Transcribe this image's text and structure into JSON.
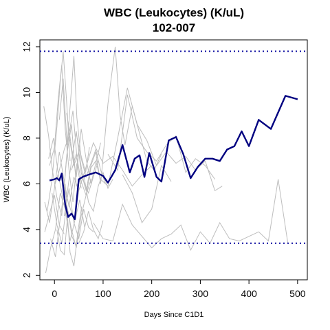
{
  "chart_data": {
    "type": "line",
    "title": "WBC (Leukocytes) (K/uL)",
    "subtitle": "102-007",
    "xlabel": "Days Since C1D1",
    "ylabel": "WBC (Leukocytes) (K/uL)",
    "xlim": [
      -30,
      520
    ],
    "ylim": [
      1.8,
      12.3
    ],
    "x_ticks": [
      0,
      100,
      200,
      300,
      400,
      500
    ],
    "y_ticks": [
      2,
      4,
      6,
      8,
      10,
      12
    ],
    "grid": false,
    "reference_lines": [
      11.8,
      3.4
    ],
    "reference_color": "#1a1aa6",
    "highlight_color": "#000080",
    "background_color": "#bdbdbd",
    "highlight": {
      "name": "102-007",
      "x": [
        -10,
        0,
        5,
        10,
        15,
        22,
        28,
        35,
        42,
        50,
        58,
        70,
        85,
        100,
        110,
        125,
        140,
        155,
        165,
        175,
        185,
        195,
        210,
        220,
        235,
        250,
        265,
        280,
        295,
        310,
        325,
        340,
        355,
        370,
        385,
        400,
        420,
        445,
        475,
        500
      ],
      "y": [
        6.15,
        6.2,
        6.25,
        6.15,
        6.45,
        5.1,
        4.55,
        4.7,
        4.45,
        6.2,
        6.3,
        6.4,
        6.5,
        6.35,
        6.05,
        6.6,
        7.7,
        6.5,
        7.1,
        7.25,
        6.3,
        7.35,
        6.3,
        6.1,
        7.9,
        8.05,
        7.3,
        6.25,
        6.75,
        7.1,
        7.1,
        7.0,
        7.5,
        7.65,
        8.3,
        7.65,
        8.8,
        8.4,
        9.85,
        9.7
      ]
    },
    "background_series": [
      {
        "x": [
          -22,
          -12,
          -5,
          5,
          15,
          25,
          35,
          45,
          60,
          80,
          100,
          120,
          140,
          160,
          180,
          200
        ],
        "y": [
          9.4,
          8.1,
          6.7,
          5.4,
          4.6,
          7.2,
          8.6,
          5.9,
          6.4,
          7.8,
          6.9,
          7.2,
          6.6,
          5.9,
          6.4,
          6.8
        ]
      },
      {
        "x": [
          -20,
          -10,
          0,
          10,
          20,
          30,
          40,
          50
        ],
        "y": [
          5.2,
          4.3,
          5.8,
          7.4,
          6.1,
          5.0,
          6.3,
          5.7
        ]
      },
      {
        "x": [
          -18,
          -8,
          2,
          12,
          22,
          32,
          42,
          52,
          62
        ],
        "y": [
          2.1,
          3.2,
          4.0,
          5.6,
          4.9,
          3.5,
          4.4,
          5.3,
          4.1
        ]
      },
      {
        "x": [
          -15,
          -5,
          5,
          12,
          18,
          25,
          32
        ],
        "y": [
          4.8,
          6.2,
          8.5,
          10.5,
          11.8,
          9.6,
          7.0
        ]
      },
      {
        "x": [
          -10,
          0,
          8,
          15,
          22,
          30,
          38,
          46,
          55
        ],
        "y": [
          6.8,
          7.6,
          9.8,
          11.2,
          8.4,
          6.6,
          5.2,
          6.9,
          5.8
        ]
      },
      {
        "x": [
          -5,
          5,
          15,
          25,
          35,
          45,
          55,
          65,
          75
        ],
        "y": [
          5.6,
          4.2,
          3.4,
          5.1,
          4.0,
          3.2,
          4.6,
          5.5,
          6.2
        ]
      },
      {
        "x": [
          -12,
          -2,
          8,
          18,
          28,
          38,
          48
        ],
        "y": [
          7.1,
          8.0,
          6.4,
          5.3,
          7.9,
          9.2,
          6.7
        ]
      },
      {
        "x": [
          -8,
          2,
          12,
          22,
          32,
          40,
          48,
          56
        ],
        "y": [
          3.6,
          2.8,
          4.5,
          6.0,
          3.0,
          2.4,
          3.9,
          5.0
        ]
      },
      {
        "x": [
          0,
          10,
          20,
          30,
          40,
          50,
          60,
          70,
          80,
          90
        ],
        "y": [
          5.9,
          6.6,
          7.5,
          8.1,
          6.8,
          7.4,
          6.1,
          5.6,
          6.3,
          7.0
        ]
      },
      {
        "x": [
          5,
          12,
          20,
          28,
          36,
          44,
          52
        ],
        "y": [
          4.0,
          3.1,
          2.9,
          4.8,
          3.7,
          3.3,
          3.8
        ]
      },
      {
        "x": [
          10,
          18,
          26,
          34,
          40,
          46,
          54,
          64,
          72
        ],
        "y": [
          8.8,
          10.6,
          7.7,
          9.9,
          11.6,
          8.9,
          7.3,
          6.5,
          7.6
        ]
      },
      {
        "x": [
          15,
          25,
          35,
          45,
          55,
          65,
          75,
          85,
          95,
          110,
          125,
          135,
          145,
          160,
          175,
          190,
          205,
          220
        ],
        "y": [
          6.2,
          5.4,
          7.0,
          8.3,
          6.5,
          5.7,
          6.8,
          7.4,
          6.0,
          9.5,
          12.0,
          9.0,
          7.7,
          9.4,
          8.2,
          7.0,
          6.6,
          7.3
        ]
      },
      {
        "x": [
          20,
          30,
          40,
          50,
          60,
          70,
          80
        ],
        "y": [
          4.6,
          5.8,
          4.3,
          3.6,
          4.9,
          4.1,
          3.9
        ]
      },
      {
        "x": [
          -20,
          -10,
          0,
          10,
          20
        ],
        "y": [
          3.9,
          4.7,
          5.5,
          4.2,
          3.8
        ]
      },
      {
        "x": [
          25,
          35,
          45,
          55,
          65,
          75,
          85,
          95
        ],
        "y": [
          9.1,
          7.6,
          6.3,
          8.4,
          7.1,
          6.0,
          6.9,
          7.8
        ]
      },
      {
        "x": [
          30,
          40,
          50,
          60,
          70,
          80,
          90,
          100,
          110,
          120
        ],
        "y": [
          5.1,
          4.4,
          5.7,
          6.4,
          5.2,
          4.8,
          5.9,
          6.5,
          5.8,
          6.2
        ]
      },
      {
        "x": [
          35,
          45,
          55,
          65,
          75,
          85,
          95,
          110,
          130,
          150,
          170,
          190,
          210,
          230,
          250,
          270,
          290,
          310,
          330,
          345
        ],
        "y": [
          6.6,
          7.3,
          6.1,
          5.5,
          6.7,
          7.0,
          6.2,
          5.9,
          8.0,
          10.2,
          8.6,
          7.9,
          6.8,
          7.4,
          6.9,
          7.2,
          6.6,
          7.0,
          5.7,
          5.9
        ]
      },
      {
        "x": [
          80,
          100,
          120,
          140,
          160,
          180,
          200,
          220,
          240,
          260,
          280,
          300,
          320,
          340,
          360,
          380,
          400,
          420,
          440,
          460,
          480
        ],
        "y": [
          4.3,
          3.6,
          3.5,
          5.1,
          4.2,
          3.7,
          3.2,
          3.6,
          3.8,
          4.2,
          3.1,
          3.9,
          3.4,
          4.3,
          3.6,
          3.5,
          3.7,
          3.9,
          3.5,
          6.2,
          3.4
        ]
      },
      {
        "x": [
          110,
          130,
          150,
          170,
          190,
          210,
          230,
          250,
          270,
          290,
          310,
          330
        ],
        "y": [
          7.3,
          6.6,
          9.9,
          8.0,
          7.4,
          7.0,
          7.7,
          8.1,
          6.5,
          7.1,
          6.8,
          6.2
        ]
      },
      {
        "x": [
          140,
          160,
          180,
          200,
          220,
          240
        ],
        "y": [
          6.4,
          5.6,
          4.3,
          4.9,
          6.8,
          6.1
        ]
      },
      {
        "x": [
          45,
          55,
          65,
          75,
          85,
          95,
          105
        ],
        "y": [
          8.2,
          7.1,
          6.3,
          6.9,
          7.5,
          6.6,
          6.0
        ]
      },
      {
        "x": [
          50,
          60,
          70,
          80,
          90,
          100
        ],
        "y": [
          3.4,
          3.9,
          4.8,
          4.0,
          3.6,
          4.4
        ]
      }
    ]
  }
}
